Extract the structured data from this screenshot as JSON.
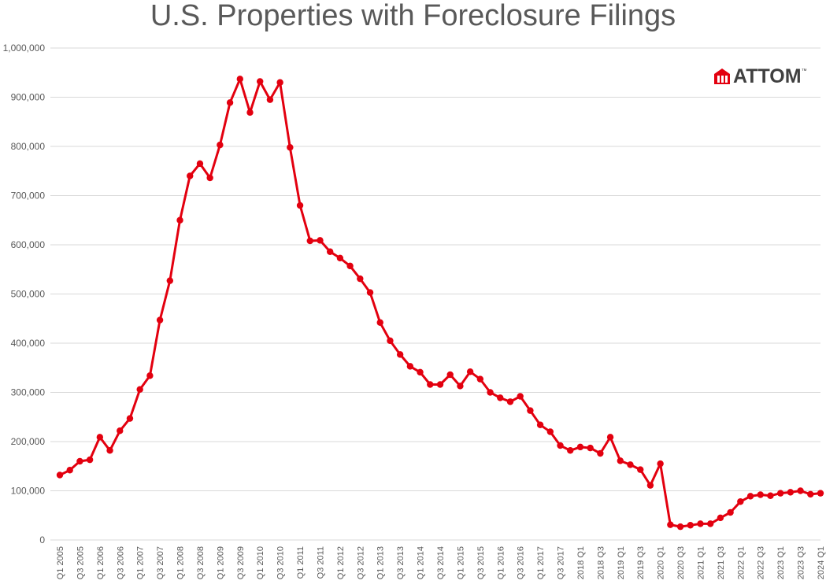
{
  "chart_data": {
    "type": "line",
    "title": "U.S. Properties with Foreclosure Filings",
    "xlabel": "",
    "ylabel": "",
    "ylim": [
      0,
      1000000
    ],
    "y_ticks": [
      "0",
      "100,000",
      "200,000",
      "300,000",
      "400,000",
      "500,000",
      "600,000",
      "700,000",
      "800,000",
      "900,000",
      "1,000,000"
    ],
    "grid": "horizontal",
    "legend": "none",
    "series_color": "#e3000f",
    "x_tick_labels": [
      "Q1 2005",
      "Q3 2005",
      "Q1 2006",
      "Q3 2006",
      "Q1 2007",
      "Q3 2007",
      "Q1 2008",
      "Q3 2008",
      "Q1 2009",
      "Q3 2009",
      "Q1 2010",
      "Q3 2010",
      "Q1 2011",
      "Q3 2011",
      "Q1 2012",
      "Q3 2012",
      "Q1 2013",
      "Q3 2013",
      "Q1 2014",
      "Q3 2014",
      "Q1 2015",
      "Q3 2015",
      "Q1 2016",
      "Q3 2016",
      "Q1 2017",
      "Q3 2017",
      "2018 Q1",
      "2018 Q3",
      "2019 Q1",
      "2019 Q3",
      "2020 Q1",
      "2020 Q3",
      "2021 Q1",
      "2021 Q3",
      "2022 Q1",
      "2022 Q3",
      "2023 Q1",
      "2023 Q3",
      "2024 Q1"
    ],
    "x": [
      "Q1 2005",
      "Q2 2005",
      "Q3 2005",
      "Q4 2005",
      "Q1 2006",
      "Q2 2006",
      "Q3 2006",
      "Q4 2006",
      "Q1 2007",
      "Q2 2007",
      "Q3 2007",
      "Q4 2007",
      "Q1 2008",
      "Q2 2008",
      "Q3 2008",
      "Q4 2008",
      "Q1 2009",
      "Q2 2009",
      "Q3 2009",
      "Q4 2009",
      "Q1 2010",
      "Q2 2010",
      "Q3 2010",
      "Q4 2010",
      "Q1 2011",
      "Q2 2011",
      "Q3 2011",
      "Q4 2011",
      "Q1 2012",
      "Q2 2012",
      "Q3 2012",
      "Q4 2012",
      "Q1 2013",
      "Q2 2013",
      "Q3 2013",
      "Q4 2013",
      "Q1 2014",
      "Q2 2014",
      "Q3 2014",
      "Q4 2014",
      "Q1 2015",
      "Q2 2015",
      "Q3 2015",
      "Q4 2015",
      "Q1 2016",
      "Q2 2016",
      "Q3 2016",
      "Q4 2016",
      "Q1 2017",
      "Q2 2017",
      "Q3 2017",
      "Q4 2017",
      "Q1 2018",
      "Q2 2018",
      "Q3 2018",
      "Q4 2018",
      "Q1 2019",
      "Q2 2019",
      "Q3 2019",
      "Q4 2019",
      "Q1 2020",
      "Q2 2020",
      "Q3 2020",
      "Q4 2020",
      "Q1 2021",
      "Q2 2021",
      "Q3 2021",
      "Q4 2021",
      "Q1 2022",
      "Q2 2022",
      "Q3 2022",
      "Q4 2022",
      "Q1 2023",
      "Q2 2023",
      "Q3 2023",
      "Q4 2023",
      "Q1 2024"
    ],
    "series": [
      {
        "values": [
          132000,
          142000,
          160000,
          163000,
          209000,
          182000,
          222000,
          247000,
          306000,
          334000,
          447000,
          527000,
          650000,
          740000,
          765000,
          736000,
          803000,
          889000,
          937000,
          869000,
          932000,
          895000,
          930000,
          798000,
          680000,
          608000,
          609000,
          586000,
          573000,
          557000,
          531000,
          503000,
          442000,
          405000,
          377000,
          353000,
          341000,
          316000,
          316000,
          336000,
          313000,
          342000,
          327000,
          300000,
          289000,
          281000,
          292000,
          263000,
          234000,
          220000,
          192000,
          182000,
          189000,
          187000,
          176000,
          209000,
          161000,
          153000,
          143000,
          111000,
          155000,
          31000,
          27000,
          30000,
          33000,
          33000,
          45000,
          56000,
          78000,
          89000,
          92000,
          90000,
          95000,
          97000,
          100000,
          93000,
          95000
        ]
      }
    ]
  },
  "logo": {
    "text": "ATTOM",
    "tm": "™"
  }
}
